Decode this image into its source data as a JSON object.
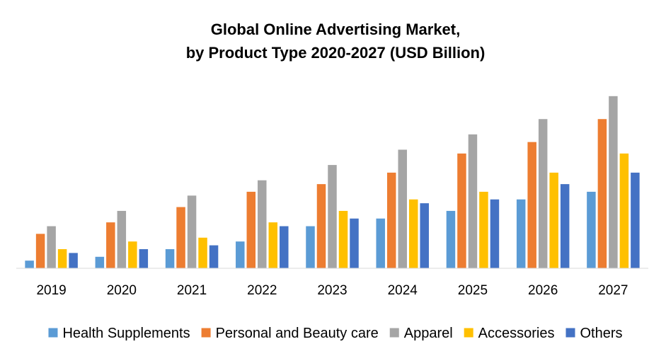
{
  "chart_data": {
    "type": "bar",
    "title_line1": "Global Online Advertising Market,",
    "title_line2": "by Product Type 2020-2027 (USD Billion)",
    "categories": [
      "2019",
      "2020",
      "2021",
      "2022",
      "2023",
      "2024",
      "2025",
      "2026",
      "2027"
    ],
    "series": [
      {
        "name": "Health Supplements",
        "color": "#5b9bd5",
        "values": [
          2,
          3,
          5,
          7,
          11,
          13,
          15,
          18,
          20
        ]
      },
      {
        "name": "Personal and Beauty care",
        "color": "#ed7d31",
        "values": [
          9,
          12,
          16,
          20,
          22,
          25,
          30,
          33,
          39
        ]
      },
      {
        "name": "Apparel",
        "color": "#a5a5a5",
        "values": [
          11,
          15,
          19,
          23,
          27,
          31,
          35,
          39,
          45
        ]
      },
      {
        "name": "Accessories",
        "color": "#ffc000",
        "values": [
          5,
          7,
          8,
          12,
          15,
          18,
          20,
          25,
          30
        ]
      },
      {
        "name": "Others",
        "color": "#4472c4",
        "values": [
          4,
          5,
          6,
          11,
          13,
          17,
          18,
          22,
          25
        ]
      }
    ],
    "xlabel": "",
    "ylabel": "",
    "ylim": [
      0,
      47
    ],
    "grid": false,
    "legend": "bottom"
  }
}
